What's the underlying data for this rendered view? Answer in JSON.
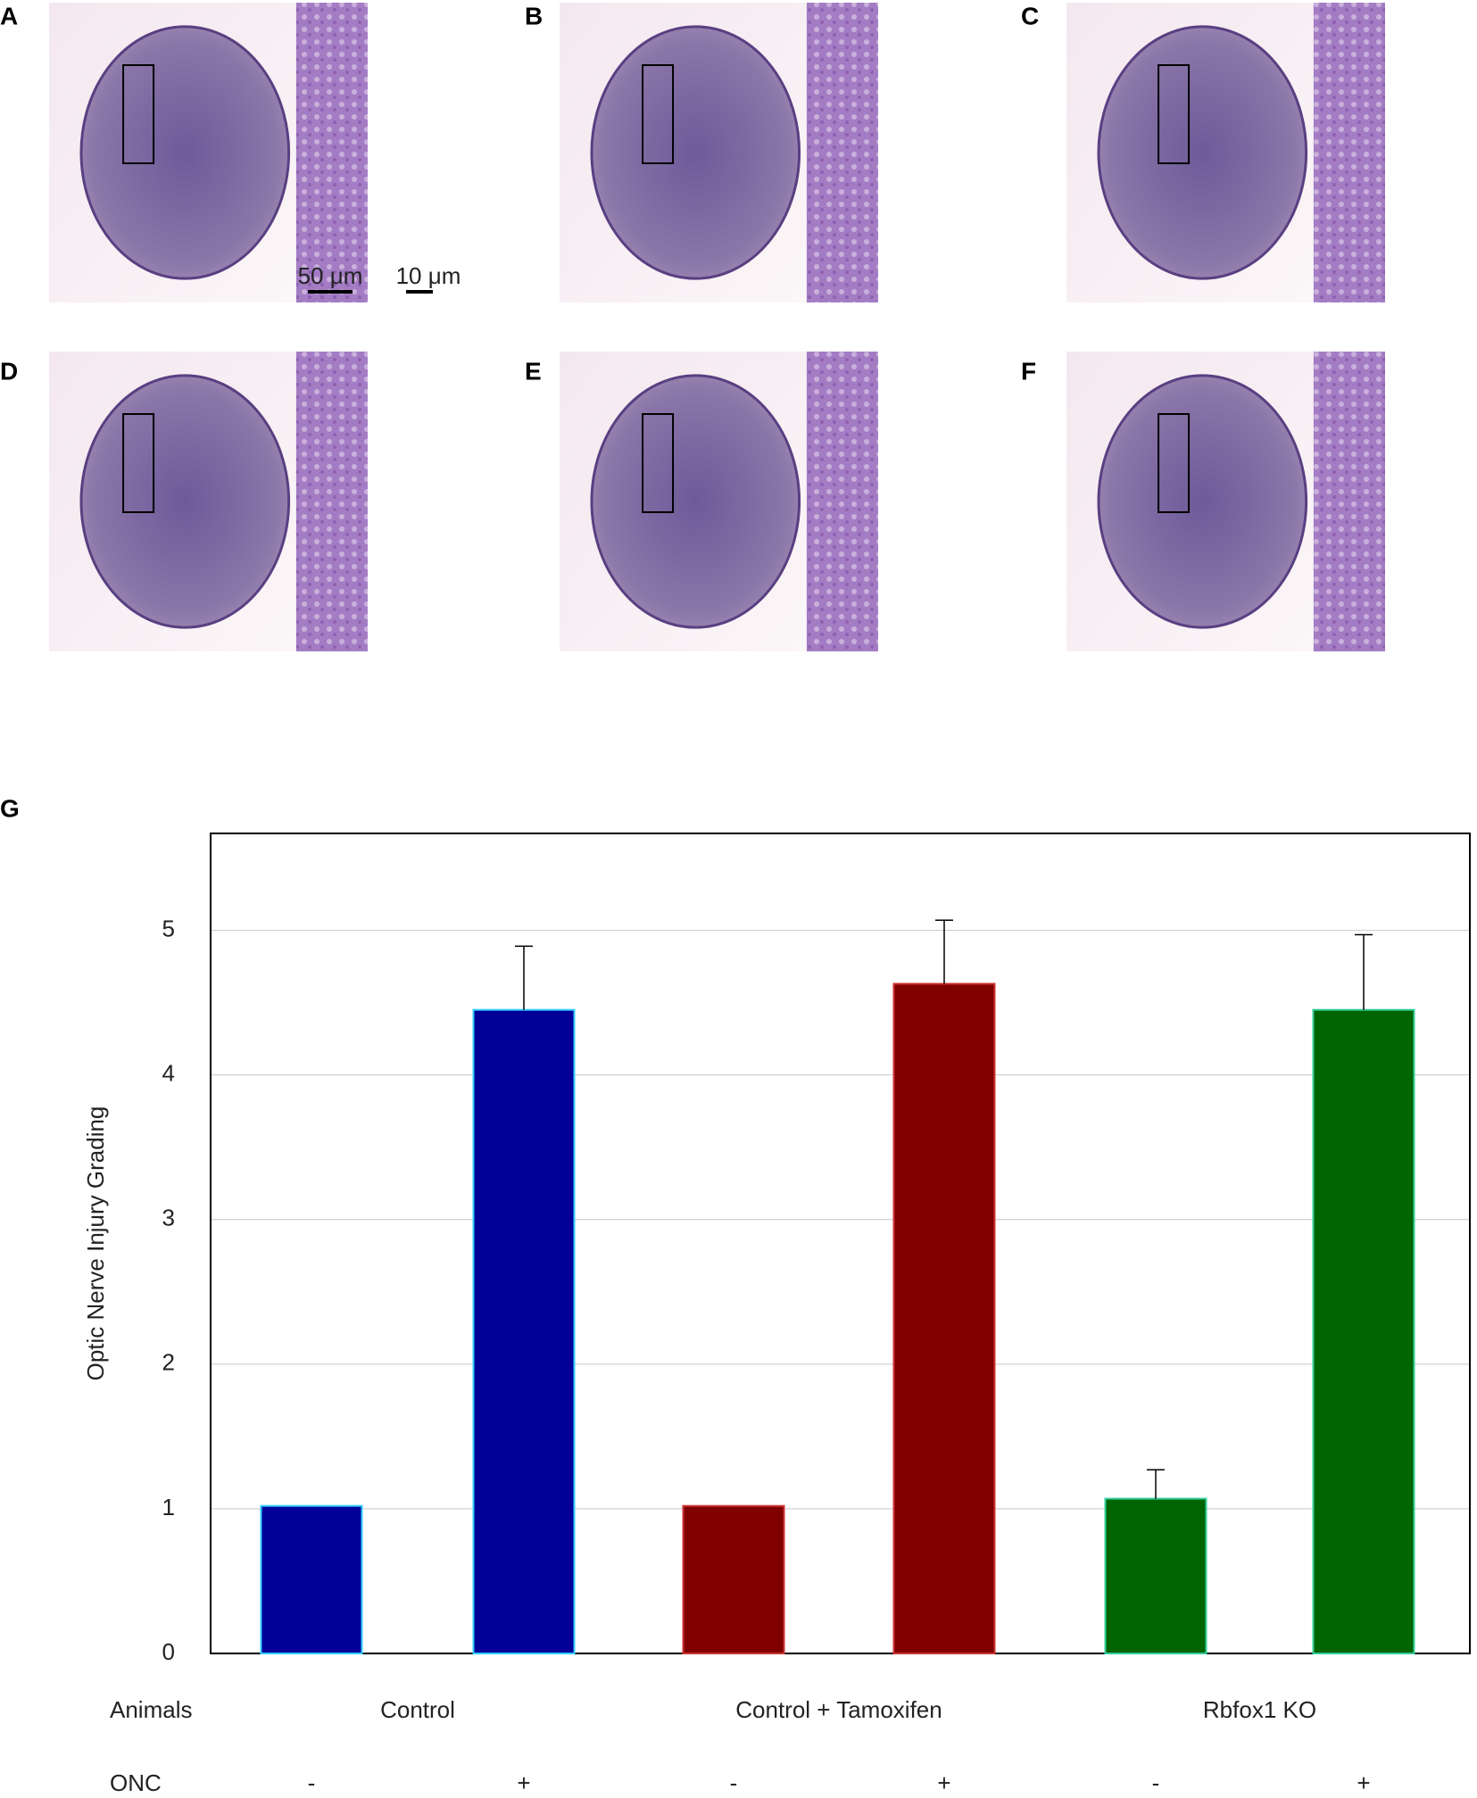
{
  "panels": [
    {
      "label": "A",
      "scale_bars": [
        "50 μm",
        "10 μm"
      ]
    },
    {
      "label": "B"
    },
    {
      "label": "C"
    },
    {
      "label": "D"
    },
    {
      "label": "E"
    },
    {
      "label": "F"
    }
  ],
  "chart_data": {
    "type": "bar",
    "panel_label": "G",
    "y_label": "Optic Nerve Injury Grading",
    "row_labels": [
      "Animals",
      "ONC"
    ],
    "groups": [
      "Control",
      "Control + Tamoxifen",
      "Rbfox1 KO"
    ],
    "categories": [
      "-",
      "+",
      "-",
      "+",
      "-",
      "+"
    ],
    "values": [
      1.02,
      4.45,
      1.02,
      4.63,
      1.07,
      4.45
    ],
    "errors": [
      null,
      0.44,
      null,
      0.44,
      0.2,
      0.52
    ],
    "colors": [
      "#000099",
      "#000099",
      "#800000",
      "#800000",
      "#006400",
      "#006400"
    ],
    "edge_colors": [
      "#33ccff",
      "#33ccff",
      "#cc3333",
      "#cc3333",
      "#33cc99",
      "#33cc99"
    ],
    "ylim": [
      0,
      5.67
    ],
    "yticks": [
      0,
      1,
      2,
      3,
      4,
      5
    ],
    "grid": true
  }
}
